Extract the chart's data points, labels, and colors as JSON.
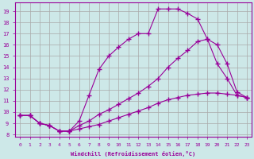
{
  "xlabel": "Windchill (Refroidissement éolien,°C)",
  "background_color": "#cde8e8",
  "line_color": "#990099",
  "grid_color": "#aaaaaa",
  "xlim": [
    -0.5,
    23.5
  ],
  "ylim": [
    7.8,
    19.8
  ],
  "yticks": [
    8,
    9,
    10,
    11,
    12,
    13,
    14,
    15,
    16,
    17,
    18,
    19
  ],
  "xticks": [
    0,
    1,
    2,
    3,
    4,
    5,
    6,
    7,
    8,
    9,
    10,
    11,
    12,
    13,
    14,
    15,
    16,
    17,
    18,
    19,
    20,
    21,
    22,
    23
  ],
  "lines": [
    {
      "x": [
        0,
        1,
        2,
        3,
        4,
        5,
        6,
        7,
        8,
        9,
        10,
        11,
        12,
        13,
        14,
        15,
        16,
        17,
        18,
        19,
        20,
        21,
        22,
        23
      ],
      "y": [
        9.7,
        9.7,
        9.0,
        8.8,
        8.3,
        8.3,
        9.2,
        11.5,
        13.8,
        15.0,
        15.8,
        16.5,
        17.0,
        17.0,
        19.2,
        19.2,
        19.2,
        18.8,
        18.3,
        16.5,
        14.3,
        13.0,
        11.5,
        11.3
      ]
    },
    {
      "x": [
        0,
        1,
        2,
        3,
        4,
        5,
        6,
        7,
        8,
        9,
        10,
        11,
        12,
        13,
        14,
        15,
        16,
        17,
        18,
        19,
        20,
        21,
        22,
        23
      ],
      "y": [
        9.7,
        9.7,
        9.0,
        8.8,
        8.3,
        8.3,
        8.8,
        9.2,
        9.8,
        10.2,
        10.7,
        11.2,
        11.7,
        12.3,
        13.0,
        14.0,
        14.8,
        15.5,
        16.3,
        16.5,
        16.0,
        14.3,
        11.8,
        11.3
      ]
    },
    {
      "x": [
        0,
        1,
        2,
        3,
        4,
        5,
        6,
        7,
        8,
        9,
        10,
        11,
        12,
        13,
        14,
        15,
        16,
        17,
        18,
        19,
        20,
        21,
        22,
        23
      ],
      "y": [
        9.7,
        9.7,
        9.0,
        8.8,
        8.3,
        8.3,
        8.5,
        8.7,
        8.9,
        9.2,
        9.5,
        9.8,
        10.1,
        10.4,
        10.8,
        11.1,
        11.3,
        11.5,
        11.6,
        11.7,
        11.7,
        11.6,
        11.5,
        11.3
      ]
    }
  ]
}
